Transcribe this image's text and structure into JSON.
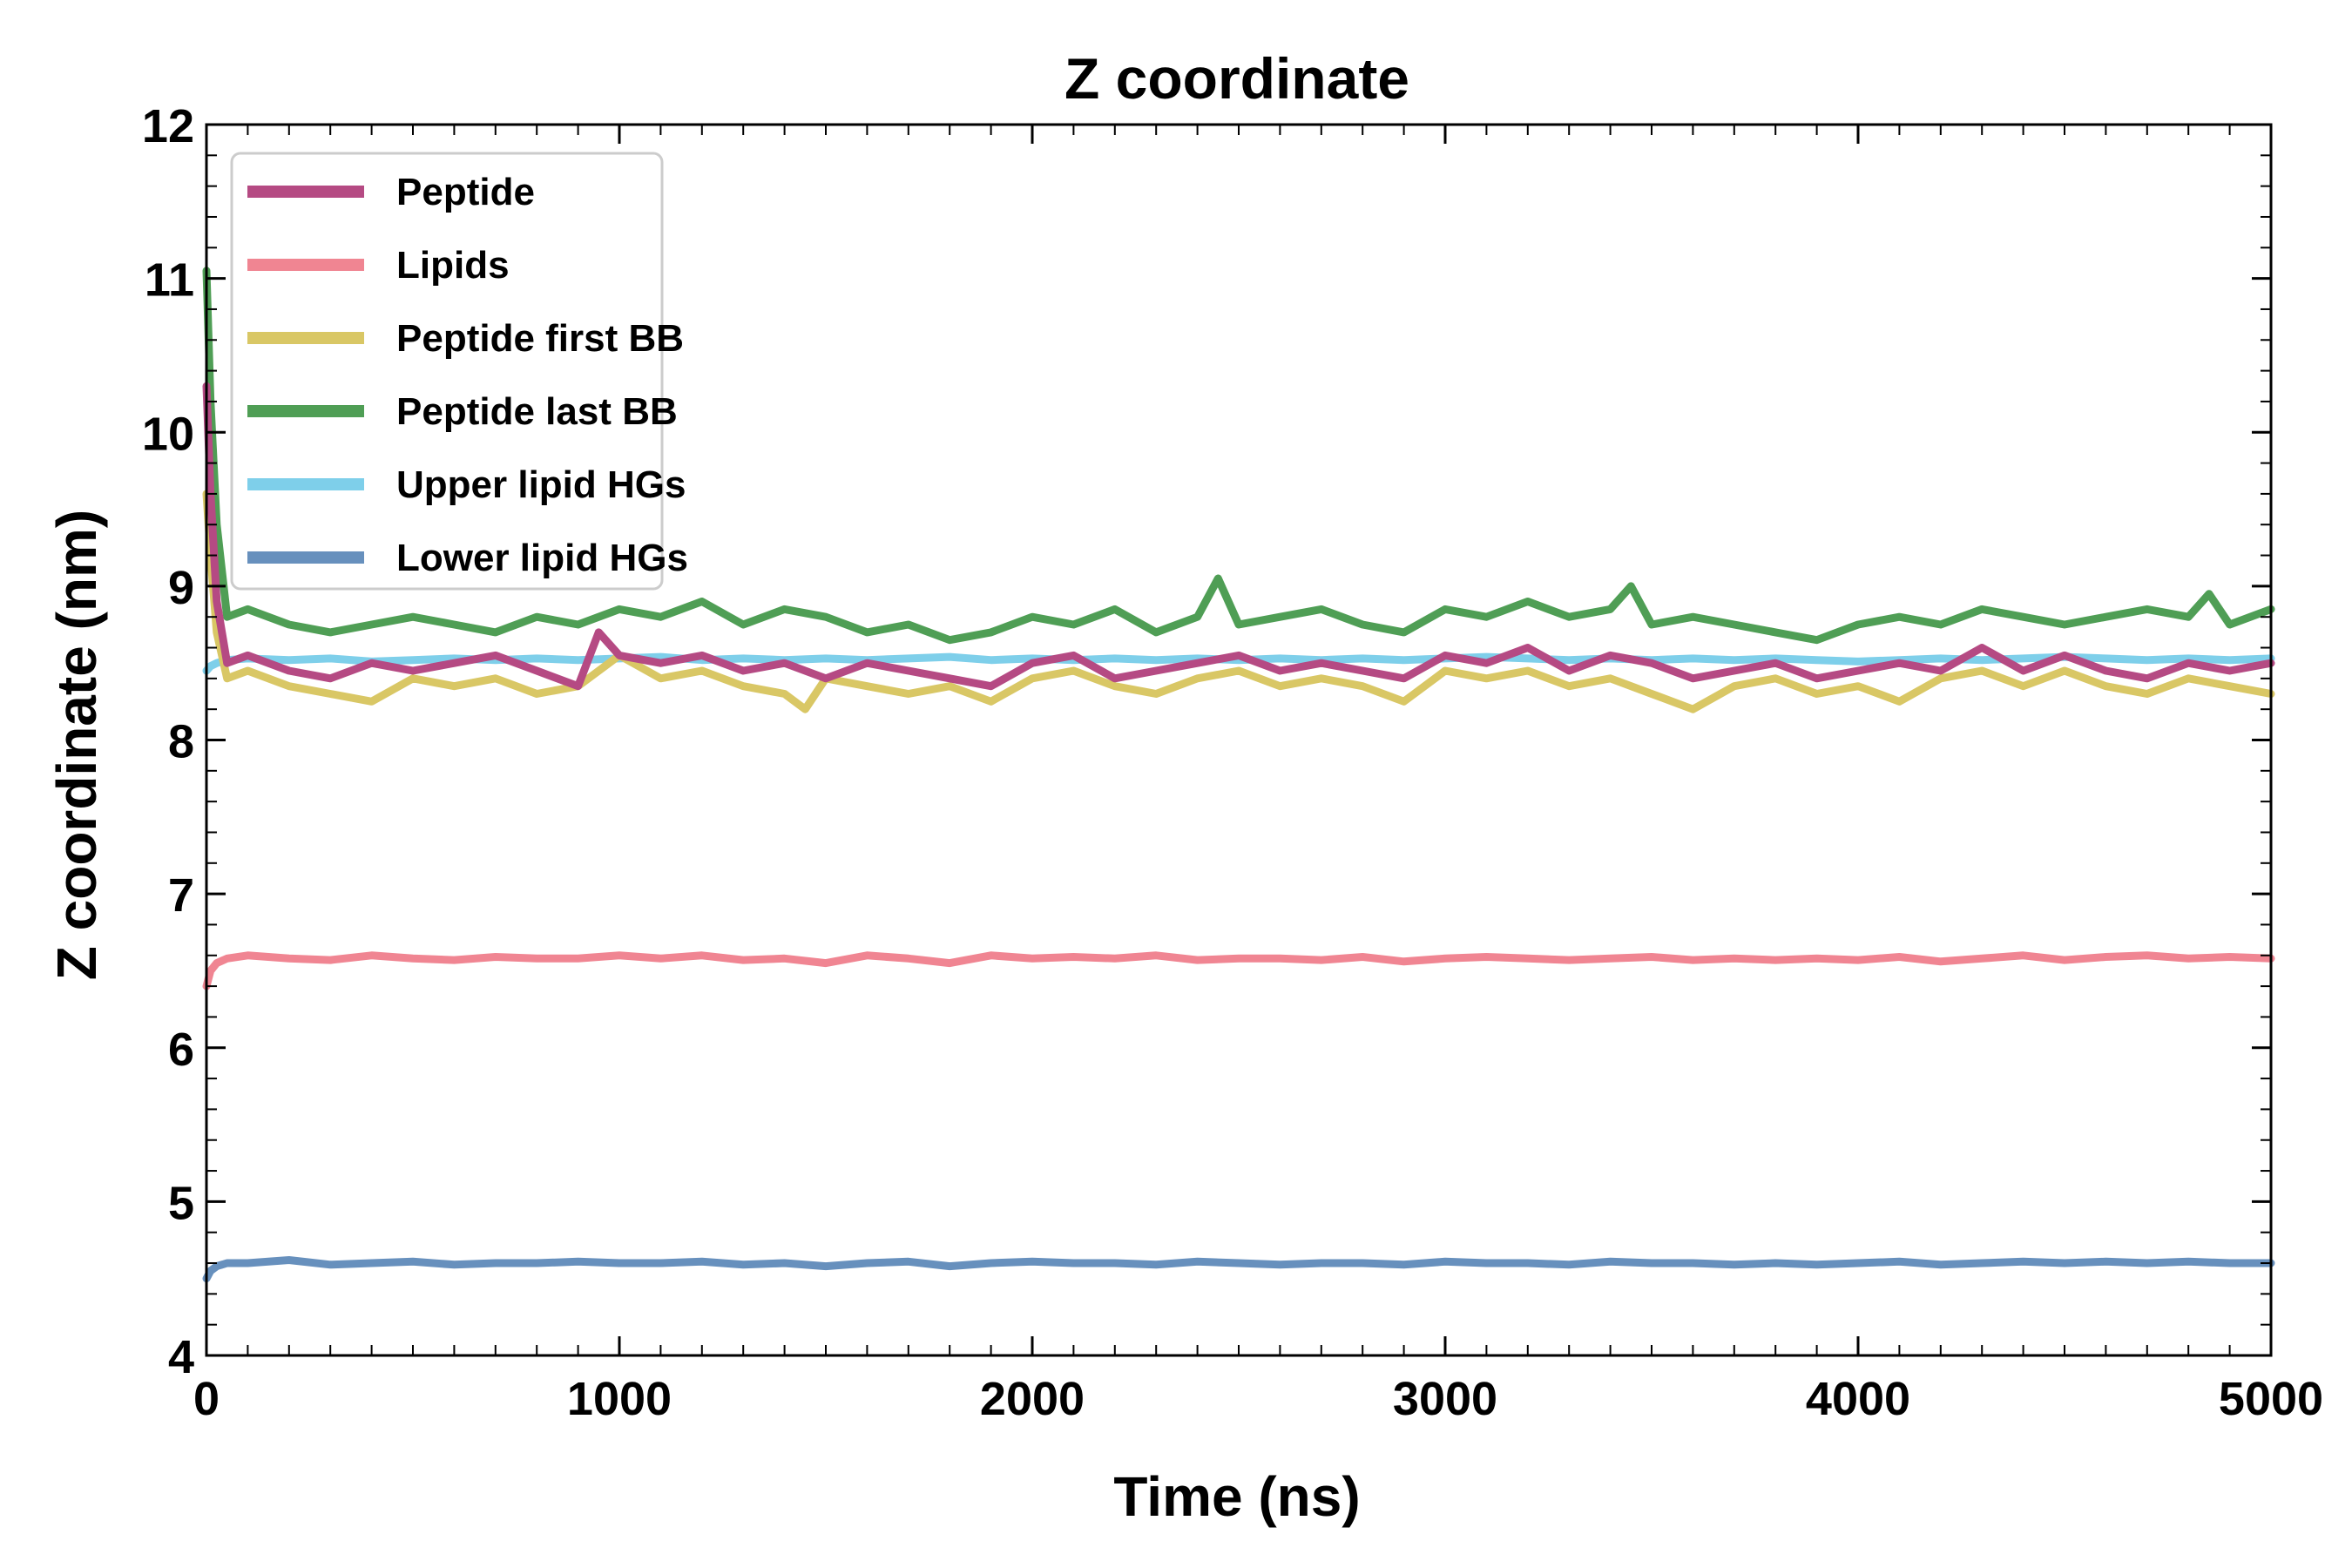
{
  "chart_data": {
    "type": "line",
    "title": "Z coordinate",
    "xlabel": "Time (ns)",
    "ylabel": "Z coordinate (nm)",
    "xlim": [
      0,
      5000
    ],
    "ylim": [
      4,
      12
    ],
    "xticks": [
      0,
      1000,
      2000,
      3000,
      4000,
      5000
    ],
    "yticks": [
      4,
      5,
      6,
      7,
      8,
      9,
      10,
      11,
      12
    ],
    "grid": false,
    "legend_position": "top-left",
    "series": [
      {
        "name": "Peptide",
        "color": "#b54a83",
        "x": [
          0,
          10,
          25,
          50,
          100,
          200,
          300,
          400,
          500,
          600,
          700,
          800,
          900,
          950,
          1000,
          1100,
          1200,
          1300,
          1400,
          1500,
          1600,
          1700,
          1800,
          1900,
          2000,
          2100,
          2200,
          2300,
          2400,
          2500,
          2600,
          2700,
          2800,
          2900,
          3000,
          3100,
          3200,
          3300,
          3400,
          3500,
          3600,
          3700,
          3800,
          3900,
          4000,
          4100,
          4200,
          4300,
          4400,
          4500,
          4600,
          4700,
          4800,
          4900,
          5000
        ],
        "y": [
          10.3,
          9.6,
          8.9,
          8.5,
          8.55,
          8.45,
          8.4,
          8.5,
          8.45,
          8.5,
          8.55,
          8.45,
          8.35,
          8.7,
          8.55,
          8.5,
          8.55,
          8.45,
          8.5,
          8.4,
          8.5,
          8.45,
          8.4,
          8.35,
          8.5,
          8.55,
          8.4,
          8.45,
          8.5,
          8.55,
          8.45,
          8.5,
          8.45,
          8.4,
          8.55,
          8.5,
          8.6,
          8.45,
          8.55,
          8.5,
          8.4,
          8.45,
          8.5,
          8.4,
          8.45,
          8.5,
          8.45,
          8.6,
          8.45,
          8.55,
          8.45,
          8.4,
          8.5,
          8.45,
          8.5
        ]
      },
      {
        "name": "Lipids",
        "color": "#f08592",
        "x": [
          0,
          10,
          25,
          50,
          100,
          200,
          300,
          400,
          500,
          600,
          700,
          800,
          900,
          1000,
          1100,
          1200,
          1300,
          1400,
          1500,
          1600,
          1700,
          1800,
          1900,
          2000,
          2100,
          2200,
          2300,
          2400,
          2500,
          2600,
          2700,
          2800,
          2900,
          3000,
          3100,
          3200,
          3300,
          3400,
          3500,
          3600,
          3700,
          3800,
          3900,
          4000,
          4100,
          4200,
          4300,
          4400,
          4500,
          4600,
          4700,
          4800,
          4900,
          5000
        ],
        "y": [
          6.4,
          6.5,
          6.55,
          6.58,
          6.6,
          6.58,
          6.57,
          6.6,
          6.58,
          6.57,
          6.59,
          6.58,
          6.58,
          6.6,
          6.58,
          6.6,
          6.57,
          6.58,
          6.55,
          6.6,
          6.58,
          6.55,
          6.6,
          6.58,
          6.59,
          6.58,
          6.6,
          6.57,
          6.58,
          6.58,
          6.57,
          6.59,
          6.56,
          6.58,
          6.59,
          6.58,
          6.57,
          6.58,
          6.59,
          6.57,
          6.58,
          6.57,
          6.58,
          6.57,
          6.59,
          6.56,
          6.58,
          6.6,
          6.57,
          6.59,
          6.6,
          6.58,
          6.59,
          6.58
        ]
      },
      {
        "name": "Peptide first BB",
        "color": "#d9c765",
        "x": [
          0,
          10,
          25,
          50,
          100,
          200,
          300,
          400,
          500,
          600,
          700,
          800,
          900,
          1000,
          1100,
          1200,
          1300,
          1400,
          1450,
          1500,
          1600,
          1700,
          1800,
          1900,
          2000,
          2100,
          2200,
          2300,
          2400,
          2500,
          2600,
          2700,
          2800,
          2900,
          3000,
          3100,
          3200,
          3300,
          3400,
          3500,
          3600,
          3700,
          3800,
          3900,
          4000,
          4100,
          4200,
          4300,
          4400,
          4500,
          4600,
          4700,
          4800,
          4900,
          5000
        ],
        "y": [
          9.6,
          9.2,
          8.7,
          8.4,
          8.45,
          8.35,
          8.3,
          8.25,
          8.4,
          8.35,
          8.4,
          8.3,
          8.35,
          8.55,
          8.4,
          8.45,
          8.35,
          8.3,
          8.2,
          8.4,
          8.35,
          8.3,
          8.35,
          8.25,
          8.4,
          8.45,
          8.35,
          8.3,
          8.4,
          8.45,
          8.35,
          8.4,
          8.35,
          8.25,
          8.45,
          8.4,
          8.45,
          8.35,
          8.4,
          8.3,
          8.2,
          8.35,
          8.4,
          8.3,
          8.35,
          8.25,
          8.4,
          8.45,
          8.35,
          8.45,
          8.35,
          8.3,
          8.4,
          8.35,
          8.3
        ]
      },
      {
        "name": "Peptide last BB",
        "color": "#4f9e55",
        "x": [
          0,
          10,
          25,
          50,
          100,
          200,
          300,
          400,
          500,
          600,
          700,
          800,
          900,
          1000,
          1100,
          1200,
          1300,
          1400,
          1500,
          1600,
          1700,
          1800,
          1900,
          2000,
          2100,
          2200,
          2300,
          2400,
          2450,
          2500,
          2600,
          2700,
          2800,
          2900,
          3000,
          3100,
          3200,
          3300,
          3400,
          3450,
          3500,
          3600,
          3700,
          3800,
          3900,
          4000,
          4100,
          4200,
          4300,
          4400,
          4500,
          4600,
          4700,
          4800,
          4850,
          4900,
          5000
        ],
        "y": [
          11.05,
          10.2,
          9.4,
          8.8,
          8.85,
          8.75,
          8.7,
          8.75,
          8.8,
          8.75,
          8.7,
          8.8,
          8.75,
          8.85,
          8.8,
          8.9,
          8.75,
          8.85,
          8.8,
          8.7,
          8.75,
          8.65,
          8.7,
          8.8,
          8.75,
          8.85,
          8.7,
          8.8,
          9.05,
          8.75,
          8.8,
          8.85,
          8.75,
          8.7,
          8.85,
          8.8,
          8.9,
          8.8,
          8.85,
          9.0,
          8.75,
          8.8,
          8.75,
          8.7,
          8.65,
          8.75,
          8.8,
          8.75,
          8.85,
          8.8,
          8.75,
          8.8,
          8.85,
          8.8,
          8.95,
          8.75,
          8.85
        ]
      },
      {
        "name": "Upper lipid HGs",
        "color": "#7ecfea",
        "x": [
          0,
          10,
          25,
          50,
          100,
          200,
          300,
          400,
          500,
          600,
          700,
          800,
          900,
          1000,
          1100,
          1200,
          1300,
          1400,
          1500,
          1600,
          1700,
          1800,
          1900,
          2000,
          2100,
          2200,
          2300,
          2400,
          2500,
          2600,
          2700,
          2800,
          2900,
          3000,
          3100,
          3200,
          3300,
          3400,
          3500,
          3600,
          3700,
          3800,
          3900,
          4000,
          4100,
          4200,
          4300,
          4400,
          4500,
          4600,
          4700,
          4800,
          4900,
          5000
        ],
        "y": [
          8.45,
          8.48,
          8.5,
          8.52,
          8.53,
          8.52,
          8.53,
          8.51,
          8.52,
          8.53,
          8.52,
          8.53,
          8.52,
          8.53,
          8.54,
          8.52,
          8.53,
          8.52,
          8.53,
          8.52,
          8.53,
          8.54,
          8.52,
          8.53,
          8.52,
          8.53,
          8.52,
          8.53,
          8.52,
          8.53,
          8.52,
          8.53,
          8.52,
          8.53,
          8.54,
          8.53,
          8.52,
          8.53,
          8.52,
          8.53,
          8.52,
          8.53,
          8.52,
          8.51,
          8.52,
          8.53,
          8.52,
          8.53,
          8.54,
          8.53,
          8.52,
          8.53,
          8.52,
          8.53
        ]
      },
      {
        "name": "Lower lipid HGs",
        "color": "#6790bd",
        "x": [
          0,
          10,
          25,
          50,
          100,
          200,
          300,
          400,
          500,
          600,
          700,
          800,
          900,
          1000,
          1100,
          1200,
          1300,
          1400,
          1500,
          1600,
          1700,
          1800,
          1900,
          2000,
          2100,
          2200,
          2300,
          2400,
          2500,
          2600,
          2700,
          2800,
          2900,
          3000,
          3100,
          3200,
          3300,
          3400,
          3500,
          3600,
          3700,
          3800,
          3900,
          4000,
          4100,
          4200,
          4300,
          4400,
          4500,
          4600,
          4700,
          4800,
          4900,
          5000
        ],
        "y": [
          4.5,
          4.55,
          4.58,
          4.6,
          4.6,
          4.62,
          4.59,
          4.6,
          4.61,
          4.59,
          4.6,
          4.6,
          4.61,
          4.6,
          4.6,
          4.61,
          4.59,
          4.6,
          4.58,
          4.6,
          4.61,
          4.58,
          4.6,
          4.61,
          4.6,
          4.6,
          4.59,
          4.61,
          4.6,
          4.59,
          4.6,
          4.6,
          4.59,
          4.61,
          4.6,
          4.6,
          4.59,
          4.61,
          4.6,
          4.6,
          4.59,
          4.6,
          4.59,
          4.6,
          4.61,
          4.59,
          4.6,
          4.61,
          4.6,
          4.61,
          4.6,
          4.61,
          4.6,
          4.6
        ]
      }
    ]
  }
}
